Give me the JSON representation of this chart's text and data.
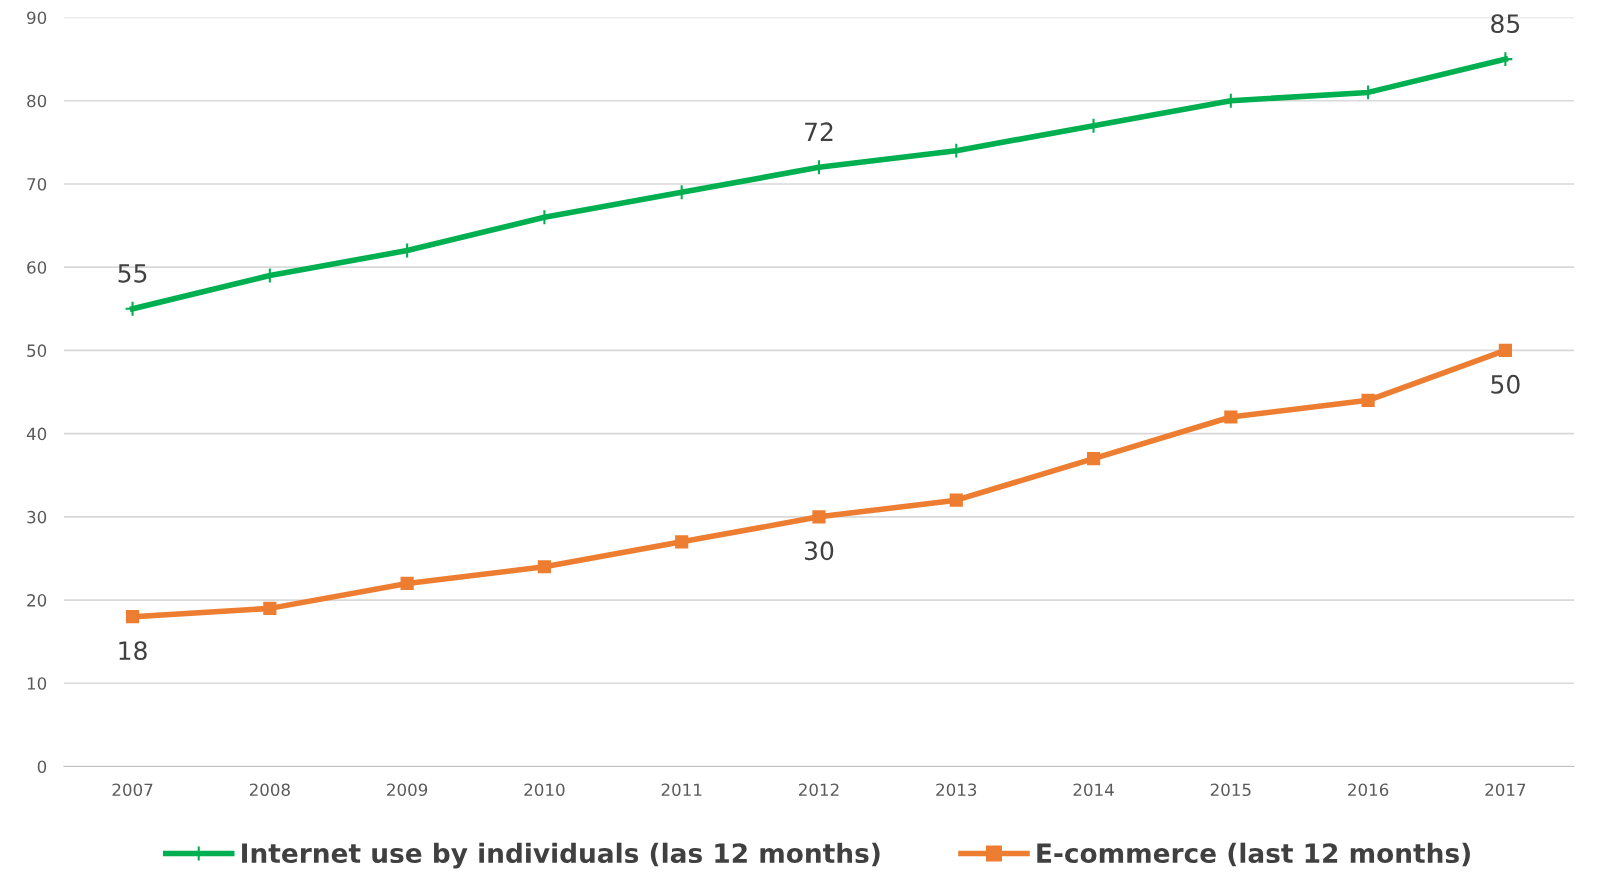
{
  "chart_data": {
    "type": "line",
    "categories": [
      "2007",
      "2008",
      "2009",
      "2010",
      "2011",
      "2012",
      "2013",
      "2014",
      "2015",
      "2016",
      "2017"
    ],
    "series": [
      {
        "name": "Internet use by individuals (las 12 months)",
        "color": "#00b050",
        "marker": "cross",
        "values": [
          55,
          59,
          62,
          66,
          69,
          72,
          74,
          77,
          80,
          81,
          85
        ],
        "value_labels": [
          "55",
          null,
          null,
          null,
          null,
          "72",
          null,
          null,
          null,
          null,
          "85"
        ]
      },
      {
        "name": "E-commerce (last 12 months)",
        "color": "#ed7d31",
        "marker": "square",
        "values": [
          18,
          19,
          22,
          24,
          27,
          30,
          32,
          37,
          42,
          44,
          50
        ],
        "value_labels": [
          "18",
          null,
          null,
          null,
          null,
          "30",
          null,
          null,
          null,
          null,
          "50"
        ]
      }
    ],
    "ylim": [
      0,
      90
    ],
    "yticks": [
      0,
      10,
      20,
      30,
      40,
      50,
      60,
      70,
      80,
      90
    ],
    "grid": "y",
    "legend": "bottom",
    "line_style": "solid"
  }
}
